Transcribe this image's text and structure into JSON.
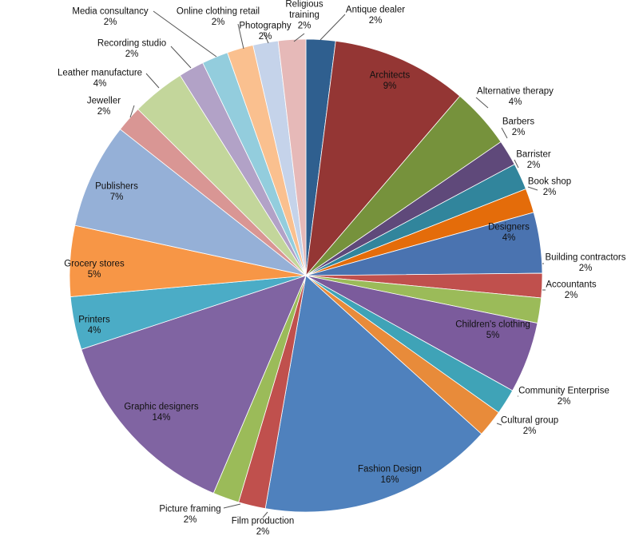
{
  "chart_data": {
    "type": "pie",
    "title": "",
    "start": "12 o'clock, clockwise",
    "slices": [
      {
        "label": "Antique dealer",
        "value_text": "2%",
        "value": 2,
        "color": "#2f5f8f"
      },
      {
        "label": "Architects",
        "value_text": "9%",
        "value": 9,
        "color": "#943634"
      },
      {
        "label": "Alternative therapy",
        "value_text": "4%",
        "value": 4,
        "color": "#76923c"
      },
      {
        "label": "Barbers",
        "value_text": "2%",
        "value": 2,
        "color": "#5f497a"
      },
      {
        "label": "Barrister",
        "value_text": "2%",
        "value": 2,
        "color": "#31859c"
      },
      {
        "label": "Book shop",
        "value_text": "2%",
        "value": 2,
        "color": "#e46c0a"
      },
      {
        "label": "Designers",
        "value_text": "4%",
        "value": 4,
        "color": "#4a73b0"
      },
      {
        "label": "Building contractors",
        "value_text": "2%",
        "value": 2,
        "color": "#c0504d"
      },
      {
        "label": "Accountants",
        "value_text": "2%",
        "value": 2,
        "color": "#9bbb59"
      },
      {
        "label": "Children's clothing",
        "value_text": "5%",
        "value": 5,
        "color": "#7b5b9c"
      },
      {
        "label": "Community Enterprise",
        "value_text": "2%",
        "value": 2,
        "color": "#3fa3b7"
      },
      {
        "label": "Cultural group",
        "value_text": "2%",
        "value": 2,
        "color": "#e88b3a"
      },
      {
        "label": "Fashion Design",
        "value_text": "16%",
        "value": 16,
        "color": "#4f81bd"
      },
      {
        "label": "Film production",
        "value_text": "2%",
        "value": 2,
        "color": "#c0504d"
      },
      {
        "label": "Picture framing",
        "value_text": "2%",
        "value": 2,
        "color": "#9bbb59"
      },
      {
        "label": "Graphic designers",
        "value_text": "14%",
        "value": 14,
        "color": "#8064a2"
      },
      {
        "label": "Printers",
        "value_text": "4%",
        "value": 4,
        "color": "#4bacc6"
      },
      {
        "label": "Grocery stores",
        "value_text": "5%",
        "value": 5,
        "color": "#f79646"
      },
      {
        "label": "Publishers",
        "value_text": "7%",
        "value": 7,
        "color": "#95b0d7"
      },
      {
        "label": "Jeweller",
        "value_text": "2%",
        "value": 2,
        "color": "#d99694"
      },
      {
        "label": "Leather manufacture",
        "value_text": "4%",
        "value": 4,
        "color": "#c3d69b"
      },
      {
        "label": "Recording studio",
        "value_text": "2%",
        "value": 2,
        "color": "#b2a2c7"
      },
      {
        "label": "Media consultancy",
        "value_text": "2%",
        "value": 2,
        "color": "#93cddd"
      },
      {
        "label": "Online clothing retail",
        "value_text": "2%",
        "value": 2,
        "color": "#fac08f"
      },
      {
        "label": "Photography",
        "value_text": "2%",
        "value": 2,
        "color": "#c5d3ea"
      },
      {
        "label": "Religious training",
        "value_text": "2%",
        "value": 2,
        "color": "#e6b9b8"
      }
    ]
  }
}
